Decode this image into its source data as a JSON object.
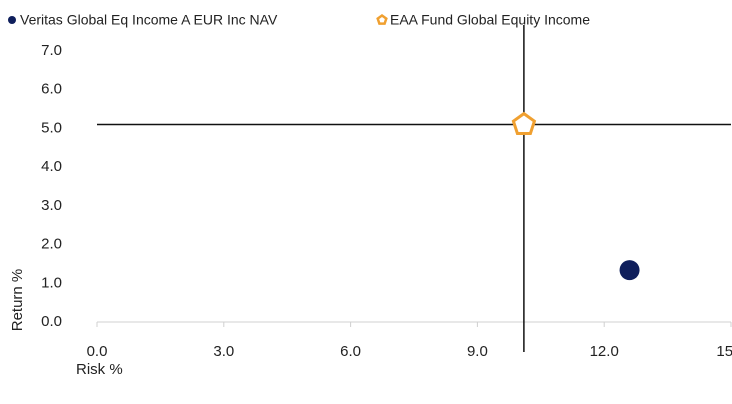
{
  "chart_data": {
    "type": "scatter",
    "xlabel": "Risk %",
    "ylabel": "Return %",
    "series": [
      {
        "name": "Veritas Global Eq Income A EUR Inc NAV",
        "color": "#0f1f5c",
        "marker": "circle",
        "x": [
          12.6
        ],
        "values": [
          1.34
        ]
      },
      {
        "name": "EAA Fund Global Equity Income",
        "color": "#f0a030",
        "marker": "pentagon",
        "x": [
          10.1
        ],
        "values": [
          5.1
        ]
      }
    ],
    "crosshair_series": 1,
    "xlim": [
      0,
      15
    ],
    "xticks": [
      {
        "value": 0,
        "label": "0.0"
      },
      {
        "value": 3,
        "label": "3.0"
      },
      {
        "value": 6,
        "label": "6.0"
      },
      {
        "value": 9,
        "label": "9.0"
      },
      {
        "value": 12,
        "label": "12.0"
      },
      {
        "value": 15,
        "label": "15.0"
      }
    ],
    "ylim": [
      0,
      7
    ],
    "yticks": [
      {
        "value": 0,
        "label": "0.0"
      },
      {
        "value": 1,
        "label": "1.0"
      },
      {
        "value": 2,
        "label": "2.0"
      },
      {
        "value": 3,
        "label": "3.0"
      },
      {
        "value": 4,
        "label": "4.0"
      },
      {
        "value": 5,
        "label": "5.0"
      },
      {
        "value": 6,
        "label": "6.0"
      },
      {
        "value": 7,
        "label": "7.0"
      }
    ],
    "grid": false
  }
}
